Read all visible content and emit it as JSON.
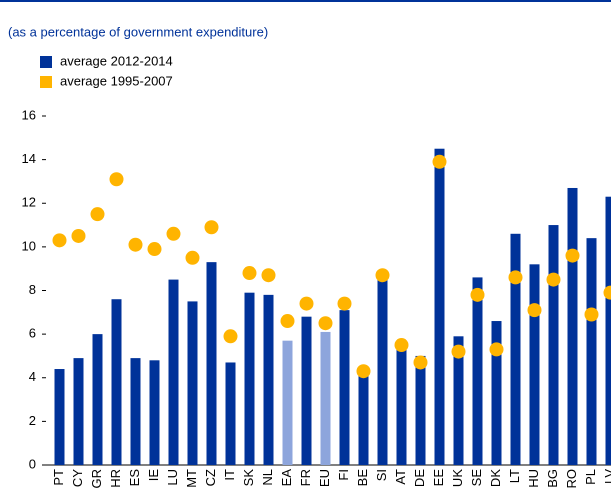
{
  "chart_data": {
    "type": "bar",
    "subtitle": "(as a percentage of government expenditure)",
    "categories": [
      "PT",
      "CY",
      "GR",
      "HR",
      "ES",
      "IE",
      "LU",
      "MT",
      "CZ",
      "IT",
      "SK",
      "NL",
      "EA",
      "FR",
      "EU",
      "FI",
      "BE",
      "SI",
      "AT",
      "DE",
      "EE",
      "UK",
      "SE",
      "DK",
      "LT",
      "HU",
      "BG",
      "RO",
      "PL",
      "LV"
    ],
    "series": [
      {
        "name": "average 2012-2014",
        "color": "#003299",
        "colors": [
          "#003299",
          "#003299",
          "#003299",
          "#003299",
          "#003299",
          "#003299",
          "#003299",
          "#003299",
          "#003299",
          "#003299",
          "#003299",
          "#003299",
          "#8da5dc",
          "#003299",
          "#8da5dc",
          "#003299",
          "#003299",
          "#003299",
          "#003299",
          "#003299",
          "#003299",
          "#003299",
          "#003299",
          "#003299",
          "#003299",
          "#003299",
          "#003299",
          "#003299",
          "#003299",
          "#003299"
        ],
        "values": [
          4.4,
          4.9,
          6.0,
          7.6,
          4.9,
          4.8,
          8.5,
          7.5,
          9.3,
          4.7,
          7.9,
          7.8,
          5.7,
          6.8,
          6.1,
          7.1,
          4.2,
          8.6,
          5.3,
          5.0,
          14.5,
          5.9,
          8.6,
          6.6,
          10.6,
          9.2,
          11.0,
          12.7,
          10.4,
          12.3
        ]
      },
      {
        "name": "average 1995-2007",
        "color": "#ffb400",
        "marker": "dot",
        "values": [
          10.3,
          10.5,
          11.5,
          13.1,
          10.1,
          9.9,
          10.6,
          9.5,
          10.9,
          5.9,
          8.8,
          8.7,
          6.6,
          7.4,
          6.5,
          7.4,
          4.3,
          8.7,
          5.5,
          4.7,
          13.9,
          5.2,
          7.8,
          5.3,
          8.6,
          7.1,
          8.5,
          9.6,
          6.9,
          7.9
        ]
      }
    ],
    "ylim": [
      0,
      16
    ],
    "yticks": [
      0,
      2,
      4,
      6,
      8,
      10,
      12,
      14,
      16
    ],
    "grid": false
  }
}
